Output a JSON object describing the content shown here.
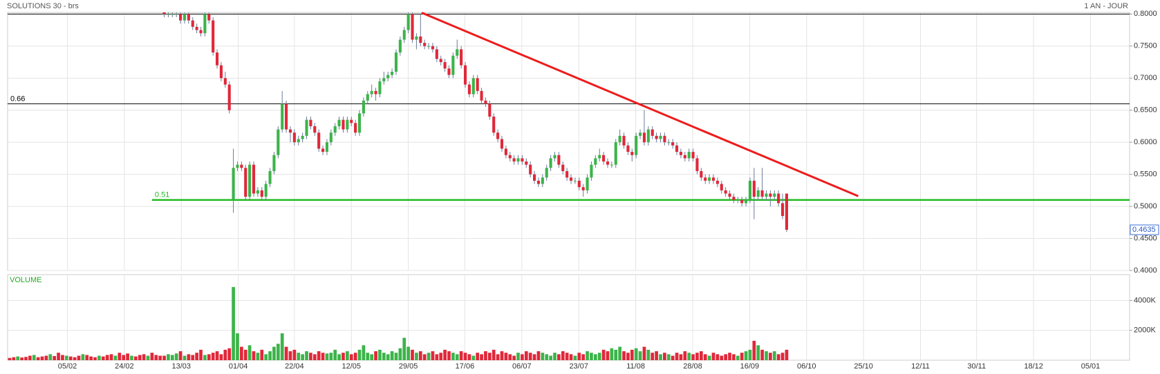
{
  "chart_data": {
    "type": "candlestick",
    "title": "SOLUTIONS 30 - brs",
    "period": "1 AN - JOUR",
    "volume_title": "VOLUME",
    "up_color": "#3cb44a",
    "down_color": "#e0283a",
    "grid": true,
    "xlim": [
      -0.5,
      275.3
    ],
    "xticks": [
      {
        "value": 14.2,
        "label": "05/02"
      },
      {
        "value": 28.2,
        "label": "24/02"
      },
      {
        "value": 42.2,
        "label": "13/03"
      },
      {
        "value": 56.2,
        "label": "01/04"
      },
      {
        "value": 70.0,
        "label": "22/04"
      },
      {
        "value": 84.0,
        "label": "12/05"
      },
      {
        "value": 98.0,
        "label": "29/05"
      },
      {
        "value": 111.9,
        "label": "17/06"
      },
      {
        "value": 125.9,
        "label": "06/07"
      },
      {
        "value": 139.9,
        "label": "23/07"
      },
      {
        "value": 153.9,
        "label": "11/08"
      },
      {
        "value": 167.9,
        "label": "28/08"
      },
      {
        "value": 181.9,
        "label": "16/09"
      },
      {
        "value": 195.9,
        "label": "06/10"
      },
      {
        "value": 209.9,
        "label": "25/10"
      },
      {
        "value": 223.9,
        "label": "12/11"
      },
      {
        "value": 237.7,
        "label": "30/11"
      },
      {
        "value": 251.7,
        "label": "18/12"
      },
      {
        "value": 265.7,
        "label": "05/01"
      }
    ],
    "ylim": [
      0.4,
      0.8025
    ],
    "yticks": [
      {
        "value": 0.8,
        "label": "0.8000"
      },
      {
        "value": 0.75,
        "label": "0.7500"
      },
      {
        "value": 0.7,
        "label": "0.7000"
      },
      {
        "value": 0.65,
        "label": "0.6500"
      },
      {
        "value": 0.6,
        "label": "0.6000"
      },
      {
        "value": 0.55,
        "label": "0.5500"
      },
      {
        "value": 0.5,
        "label": "0.5000"
      },
      {
        "value": 0.45,
        "label": "0.4500"
      },
      {
        "value": 0.4,
        "label": "0.4000"
      }
    ],
    "vlim": [
      0,
      5730
    ],
    "vticks": [
      {
        "value": 2000,
        "label": "2000K"
      },
      {
        "value": 4000,
        "label": "4000K"
      }
    ],
    "last_price": {
      "value": 0.4635,
      "label": "0.4635"
    },
    "levels": [
      {
        "value": 0.8,
        "color": "#000000"
      },
      {
        "value": 0.66,
        "label": "0.66",
        "color": "#000000"
      },
      {
        "value": 0.51,
        "label": "0.51",
        "color": "#22bb22",
        "from": 35
      }
    ],
    "trendline": {
      "x": [
        101.3,
        208.6
      ],
      "y": [
        0.802,
        0.516
      ],
      "color": "#ee1c1c"
    },
    "early_volume_direction": "ddudddudddudddudddudddudddudddudddud",
    "candles": [
      null,
      null,
      null,
      null,
      null,
      null,
      null,
      null,
      null,
      null,
      null,
      null,
      null,
      null,
      null,
      null,
      null,
      null,
      null,
      null,
      null,
      null,
      null,
      null,
      null,
      null,
      null,
      null,
      null,
      null,
      null,
      null,
      null,
      null,
      null,
      null,
      null,
      null,
      [
        0.805,
        0.81,
        0.795,
        0.8
      ],
      [
        0.8,
        0.805,
        0.795,
        0.8
      ],
      [
        0.8,
        0.805,
        0.795,
        0.8
      ],
      [
        0.8,
        0.805,
        0.795,
        0.8
      ],
      [
        0.8,
        0.805,
        0.785,
        0.79
      ],
      [
        0.79,
        0.805,
        0.785,
        0.8
      ],
      [
        0.8,
        0.805,
        0.785,
        0.79
      ],
      [
        0.79,
        0.795,
        0.775,
        0.78
      ],
      [
        0.78,
        0.785,
        0.77,
        0.775
      ],
      [
        0.775,
        0.78,
        0.765,
        0.77
      ],
      [
        0.77,
        0.805,
        0.765,
        0.8
      ],
      [
        0.8,
        0.805,
        0.785,
        0.79
      ],
      [
        0.79,
        0.795,
        0.735,
        0.74
      ],
      [
        0.74,
        0.745,
        0.715,
        0.72
      ],
      [
        0.72,
        0.725,
        0.695,
        0.7
      ],
      [
        0.7,
        0.71,
        0.685,
        0.69
      ],
      [
        0.69,
        0.695,
        0.645,
        0.65
      ],
      [
        0.51,
        0.59,
        0.49,
        0.56
      ],
      [
        0.56,
        0.57,
        0.555,
        0.565
      ],
      [
        0.565,
        0.57,
        0.555,
        0.56
      ],
      [
        0.56,
        0.565,
        0.51,
        0.515
      ],
      [
        0.515,
        0.57,
        0.51,
        0.565
      ],
      [
        0.565,
        0.57,
        0.515,
        0.52
      ],
      [
        0.52,
        0.53,
        0.515,
        0.525
      ],
      [
        0.525,
        0.53,
        0.51,
        0.515
      ],
      [
        0.515,
        0.54,
        0.51,
        0.535
      ],
      [
        0.535,
        0.56,
        0.53,
        0.555
      ],
      [
        0.555,
        0.585,
        0.55,
        0.58
      ],
      [
        0.58,
        0.625,
        0.575,
        0.62
      ],
      [
        0.62,
        0.68,
        0.615,
        0.66
      ],
      [
        0.66,
        0.665,
        0.615,
        0.62
      ],
      [
        0.62,
        0.625,
        0.6,
        0.615
      ],
      [
        0.615,
        0.62,
        0.595,
        0.6
      ],
      [
        0.6,
        0.61,
        0.595,
        0.605
      ],
      [
        0.605,
        0.615,
        0.6,
        0.61
      ],
      [
        0.61,
        0.64,
        0.605,
        0.635
      ],
      [
        0.635,
        0.64,
        0.62,
        0.625
      ],
      [
        0.625,
        0.63,
        0.61,
        0.615
      ],
      [
        0.615,
        0.62,
        0.585,
        0.59
      ],
      [
        0.59,
        0.595,
        0.58,
        0.585
      ],
      [
        0.585,
        0.605,
        0.58,
        0.6
      ],
      [
        0.6,
        0.62,
        0.595,
        0.615
      ],
      [
        0.615,
        0.63,
        0.61,
        0.625
      ],
      [
        0.625,
        0.64,
        0.62,
        0.635
      ],
      [
        0.635,
        0.64,
        0.615,
        0.62
      ],
      [
        0.62,
        0.64,
        0.615,
        0.635
      ],
      [
        0.635,
        0.64,
        0.625,
        0.63
      ],
      [
        0.63,
        0.635,
        0.61,
        0.615
      ],
      [
        0.615,
        0.65,
        0.61,
        0.645
      ],
      [
        0.645,
        0.67,
        0.64,
        0.665
      ],
      [
        0.665,
        0.68,
        0.66,
        0.675
      ],
      [
        0.675,
        0.69,
        0.67,
        0.68
      ],
      [
        0.68,
        0.685,
        0.665,
        0.675
      ],
      [
        0.675,
        0.7,
        0.67,
        0.695
      ],
      [
        0.695,
        0.71,
        0.69,
        0.7
      ],
      [
        0.7,
        0.71,
        0.695,
        0.705
      ],
      [
        0.705,
        0.715,
        0.7,
        0.71
      ],
      [
        0.71,
        0.745,
        0.705,
        0.74
      ],
      [
        0.74,
        0.765,
        0.735,
        0.76
      ],
      [
        0.76,
        0.78,
        0.755,
        0.775
      ],
      [
        0.775,
        0.805,
        0.77,
        0.8
      ],
      [
        0.8,
        0.805,
        0.755,
        0.76
      ],
      [
        0.76,
        0.77,
        0.745,
        0.765
      ],
      [
        0.765,
        0.8,
        0.75,
        0.755
      ],
      [
        0.755,
        0.76,
        0.745,
        0.75
      ],
      [
        0.75,
        0.755,
        0.745,
        0.75
      ],
      [
        0.75,
        0.755,
        0.74,
        0.745
      ],
      [
        0.745,
        0.75,
        0.725,
        0.73
      ],
      [
        0.73,
        0.735,
        0.72,
        0.725
      ],
      [
        0.725,
        0.73,
        0.71,
        0.715
      ],
      [
        0.715,
        0.72,
        0.7,
        0.705
      ],
      [
        0.705,
        0.74,
        0.7,
        0.735
      ],
      [
        0.735,
        0.76,
        0.73,
        0.745
      ],
      [
        0.745,
        0.75,
        0.715,
        0.72
      ],
      [
        0.72,
        0.725,
        0.685,
        0.69
      ],
      [
        0.69,
        0.695,
        0.67,
        0.675
      ],
      [
        0.675,
        0.705,
        0.67,
        0.7
      ],
      [
        0.7,
        0.705,
        0.675,
        0.68
      ],
      [
        0.68,
        0.685,
        0.66,
        0.665
      ],
      [
        0.665,
        0.67,
        0.655,
        0.66
      ],
      [
        0.66,
        0.665,
        0.635,
        0.64
      ],
      [
        0.64,
        0.645,
        0.61,
        0.615
      ],
      [
        0.615,
        0.62,
        0.6,
        0.605
      ],
      [
        0.605,
        0.61,
        0.585,
        0.59
      ],
      [
        0.59,
        0.595,
        0.575,
        0.58
      ],
      [
        0.58,
        0.585,
        0.57,
        0.575
      ],
      [
        0.575,
        0.58,
        0.565,
        0.57
      ],
      [
        0.57,
        0.58,
        0.565,
        0.575
      ],
      [
        0.575,
        0.58,
        0.565,
        0.57
      ],
      [
        0.57,
        0.575,
        0.56,
        0.565
      ],
      [
        0.565,
        0.57,
        0.545,
        0.55
      ],
      [
        0.55,
        0.555,
        0.535,
        0.54
      ],
      [
        0.54,
        0.545,
        0.53,
        0.535
      ],
      [
        0.535,
        0.55,
        0.53,
        0.545
      ],
      [
        0.545,
        0.565,
        0.54,
        0.56
      ],
      [
        0.56,
        0.58,
        0.555,
        0.575
      ],
      [
        0.575,
        0.585,
        0.57,
        0.58
      ],
      [
        0.58,
        0.585,
        0.56,
        0.565
      ],
      [
        0.565,
        0.57,
        0.55,
        0.555
      ],
      [
        0.555,
        0.56,
        0.54,
        0.545
      ],
      [
        0.545,
        0.55,
        0.535,
        0.54
      ],
      [
        0.54,
        0.545,
        0.535,
        0.54
      ],
      [
        0.54,
        0.545,
        0.525,
        0.53
      ],
      [
        0.53,
        0.535,
        0.515,
        0.525
      ],
      [
        0.525,
        0.55,
        0.52,
        0.545
      ],
      [
        0.545,
        0.57,
        0.54,
        0.565
      ],
      [
        0.565,
        0.58,
        0.56,
        0.575
      ],
      [
        0.575,
        0.59,
        0.57,
        0.58
      ],
      [
        0.58,
        0.585,
        0.565,
        0.57
      ],
      [
        0.57,
        0.575,
        0.56,
        0.565
      ],
      [
        0.565,
        0.57,
        0.56,
        0.565
      ],
      [
        0.565,
        0.605,
        0.56,
        0.6
      ],
      [
        0.6,
        0.62,
        0.595,
        0.61
      ],
      [
        0.61,
        0.615,
        0.59,
        0.595
      ],
      [
        0.595,
        0.6,
        0.58,
        0.585
      ],
      [
        0.585,
        0.59,
        0.57,
        0.58
      ],
      [
        0.58,
        0.615,
        0.575,
        0.61
      ],
      [
        0.61,
        0.62,
        0.605,
        0.615
      ],
      [
        0.615,
        0.65,
        0.595,
        0.6
      ],
      [
        0.6,
        0.625,
        0.595,
        0.62
      ],
      [
        0.62,
        0.625,
        0.605,
        0.61
      ],
      [
        0.61,
        0.615,
        0.6,
        0.605
      ],
      [
        0.605,
        0.615,
        0.6,
        0.61
      ],
      [
        0.61,
        0.615,
        0.595,
        0.6
      ],
      [
        0.6,
        0.605,
        0.595,
        0.6
      ],
      [
        0.6,
        0.605,
        0.59,
        0.595
      ],
      [
        0.595,
        0.6,
        0.58,
        0.585
      ],
      [
        0.585,
        0.59,
        0.575,
        0.58
      ],
      [
        0.58,
        0.585,
        0.57,
        0.575
      ],
      [
        0.575,
        0.59,
        0.57,
        0.585
      ],
      [
        0.585,
        0.59,
        0.57,
        0.575
      ],
      [
        0.575,
        0.58,
        0.55,
        0.555
      ],
      [
        0.555,
        0.56,
        0.54,
        0.545
      ],
      [
        0.545,
        0.55,
        0.535,
        0.54
      ],
      [
        0.54,
        0.55,
        0.535,
        0.545
      ],
      [
        0.545,
        0.55,
        0.535,
        0.54
      ],
      [
        0.54,
        0.545,
        0.53,
        0.535
      ],
      [
        0.535,
        0.54,
        0.52,
        0.525
      ],
      [
        0.525,
        0.53,
        0.515,
        0.52
      ],
      [
        0.52,
        0.525,
        0.51,
        0.515
      ],
      [
        0.515,
        0.52,
        0.505,
        0.51
      ],
      [
        0.51,
        0.515,
        0.505,
        0.51
      ],
      [
        0.51,
        0.515,
        0.5,
        0.505
      ],
      [
        0.505,
        0.515,
        0.5,
        0.51
      ],
      [
        0.51,
        0.545,
        0.505,
        0.54
      ],
      [
        0.54,
        0.56,
        0.48,
        0.515
      ],
      [
        0.515,
        0.53,
        0.51,
        0.525
      ],
      [
        0.525,
        0.56,
        0.51,
        0.515
      ],
      [
        0.515,
        0.525,
        0.51,
        0.52
      ],
      [
        0.52,
        0.525,
        0.5,
        0.515
      ],
      [
        0.515,
        0.525,
        0.51,
        0.52
      ],
      [
        0.52,
        0.525,
        0.5,
        0.505
      ],
      [
        0.505,
        0.52,
        0.48,
        0.485
      ],
      [
        0.52,
        0.52,
        0.46,
        0.4635
      ]
    ],
    "volume": [
      150,
      200,
      250,
      180,
      220,
      300,
      350,
      200,
      250,
      300,
      400,
      280,
      500,
      350,
      300,
      250,
      200,
      300,
      400,
      350,
      250,
      200,
      300,
      250,
      350,
      400,
      300,
      500,
      350,
      450,
      300,
      250,
      350,
      400,
      300,
      500,
      350,
      300,
      300,
      400,
      350,
      450,
      600,
      300,
      400,
      350,
      500,
      700,
      350,
      400,
      500,
      600,
      400,
      700,
      800,
      4900,
      1800,
      900,
      700,
      1000,
      600,
      500,
      700,
      400,
      600,
      900,
      1100,
      1800,
      900,
      600,
      700,
      500,
      400,
      600,
      500,
      400,
      600,
      500,
      450,
      500,
      700,
      400,
      500,
      600,
      400,
      500,
      700,
      1000,
      500,
      400,
      600,
      700,
      500,
      400,
      600,
      500,
      800,
      1500,
      900,
      700,
      500,
      600,
      400,
      500,
      600,
      400,
      500,
      700,
      600,
      500,
      400,
      600,
      500,
      400,
      300,
      500,
      400,
      600,
      500,
      700,
      400,
      600,
      500,
      400,
      300,
      500,
      400,
      600,
      500,
      400,
      600,
      500,
      400,
      300,
      500,
      400,
      600,
      500,
      400,
      300,
      500,
      400,
      600,
      500,
      400,
      500,
      700,
      600,
      800,
      700,
      900,
      600,
      500,
      700,
      800,
      600,
      900,
      700,
      500,
      600,
      400,
      500,
      400,
      300,
      500,
      400,
      600,
      500,
      400,
      500,
      600,
      400,
      300,
      500,
      400,
      300,
      400,
      500,
      400,
      300,
      500,
      600,
      700,
      1300,
      1000,
      700,
      600,
      500,
      600,
      400,
      500,
      700
    ]
  }
}
